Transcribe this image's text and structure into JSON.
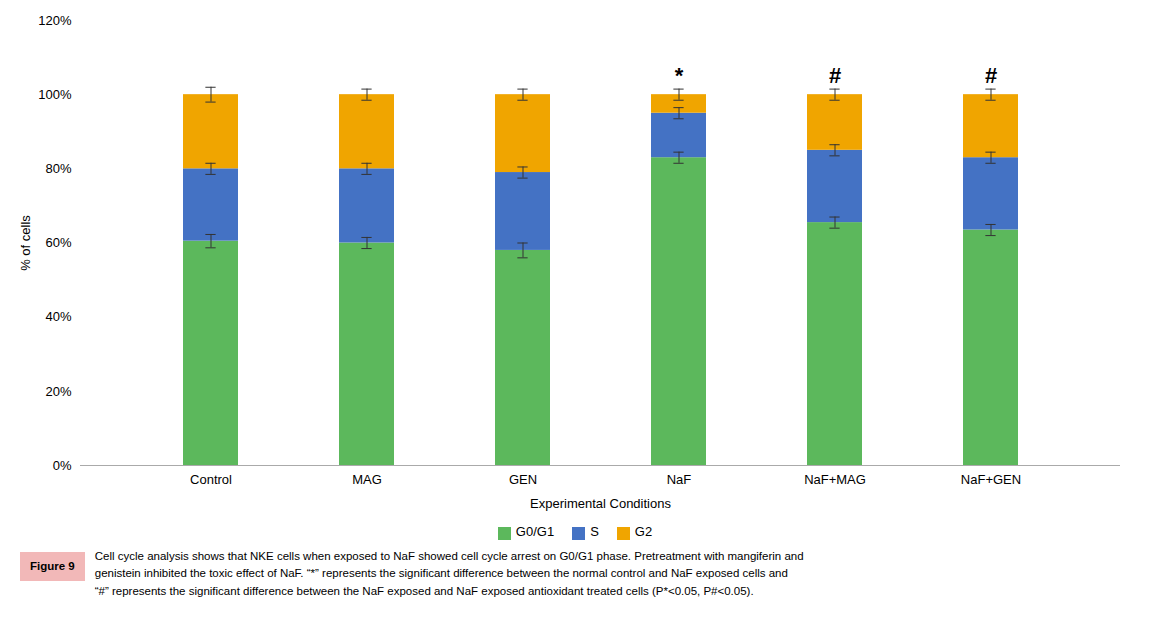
{
  "chart_data": {
    "type": "bar",
    "stacked": true,
    "categories": [
      "Control",
      "MAG",
      "GEN",
      "NaF",
      "NaF+MAG",
      "NaF+GEN"
    ],
    "series": [
      {
        "name": "G0/G1",
        "color": "#5cb85c",
        "values": [
          0.605,
          0.6,
          0.58,
          0.83,
          0.655,
          0.635
        ],
        "errors": [
          0.018,
          0.015,
          0.02,
          0.015,
          0.015,
          0.015
        ]
      },
      {
        "name": "S",
        "color": "#4472c4",
        "values": [
          0.195,
          0.2,
          0.21,
          0.12,
          0.195,
          0.195
        ],
        "errors": [
          0.015,
          0.015,
          0.015,
          0.015,
          0.015,
          0.015
        ]
      },
      {
        "name": "G2",
        "color": "#f0a500",
        "values": [
          0.2,
          0.2,
          0.21,
          0.05,
          0.15,
          0.17
        ],
        "errors": [
          0.02,
          0.015,
          0.015,
          0.015,
          0.015,
          0.015
        ]
      }
    ],
    "xlabel": "Experimental Conditions",
    "ylabel": "% of cells",
    "ylim": [
      0,
      1.2
    ],
    "yticks": [
      {
        "value": 0,
        "label": "0%"
      },
      {
        "value": 0.2,
        "label": "20%"
      },
      {
        "value": 0.4,
        "label": "40%"
      },
      {
        "value": 0.6,
        "label": "60%"
      },
      {
        "value": 0.8,
        "label": "80%"
      },
      {
        "value": 1.0,
        "label": "100%"
      },
      {
        "value": 1.2,
        "label": "120%"
      }
    ],
    "grid": false,
    "legend": "bottom",
    "annotations": [
      {
        "category": "NaF",
        "text": "*"
      },
      {
        "category": "NaF+MAG",
        "text": "#"
      },
      {
        "category": "NaF+GEN",
        "text": "#"
      }
    ],
    "caption_label": "Figure 9",
    "caption": [
      "Cell cycle analysis shows that NKE cells when exposed to NaF showed cell cycle arrest on G0/G1 phase. Pretreatment with mangiferin and",
      "genistein inhibited the toxic effect of NaF. “*” represents the significant difference between the normal control and NaF exposed cells and",
      "“#” represents the significant difference between the NaF exposed and NaF exposed antioxidant treated cells (P*<0.05, P#<0.05)."
    ]
  }
}
